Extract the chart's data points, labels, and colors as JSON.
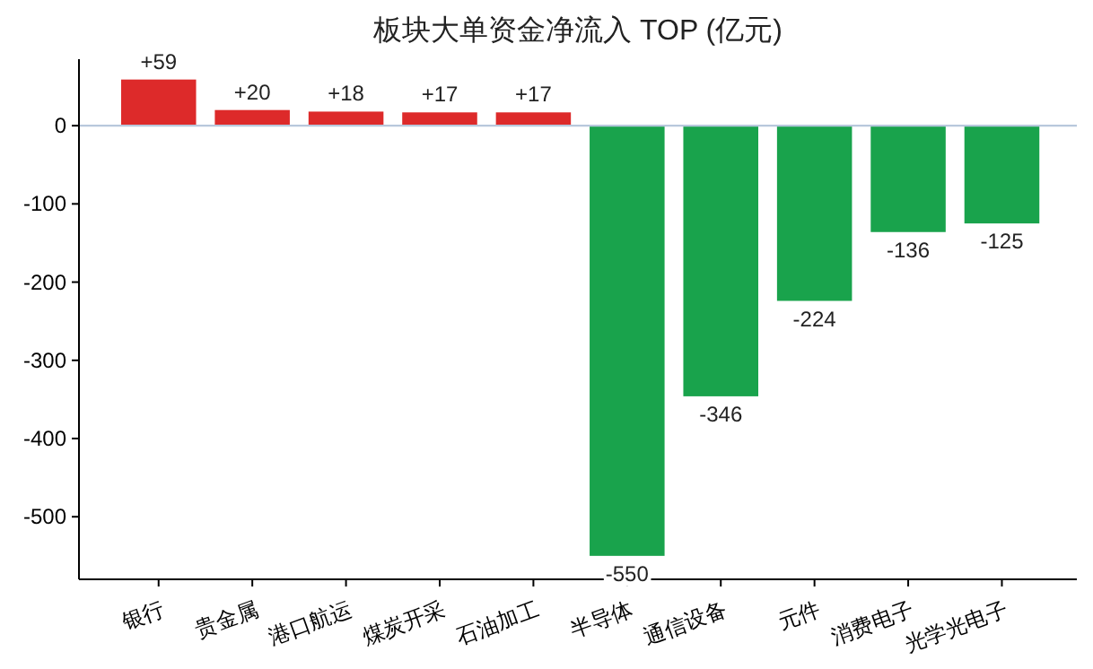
{
  "chart_data": {
    "type": "bar",
    "title": "板块大单资金净流入 TOP (亿元)",
    "categories": [
      "银行",
      "贵金属",
      "港口航运",
      "煤炭开采",
      "石油加工",
      "半导体",
      "通信设备",
      "元件",
      "消费电子",
      "光学光电子"
    ],
    "values": [
      59,
      20,
      18,
      17,
      17,
      -550,
      -346,
      -224,
      -136,
      -125
    ],
    "colors": [
      "#dd2a2a",
      "#dd2a2a",
      "#dd2a2a",
      "#dd2a2a",
      "#dd2a2a",
      "#19a34c",
      "#19a34c",
      "#19a34c",
      "#19a34c",
      "#19a34c"
    ],
    "value_labels": [
      "+59",
      "+20",
      "+18",
      "+17",
      "+17",
      "-550",
      "-346",
      "-224",
      "-136",
      "-125"
    ],
    "ylim": [
      -580,
      85
    ],
    "yticks": [
      0,
      -100,
      -200,
      -300,
      -400,
      -500
    ],
    "ref_lines": [
      {
        "axis": "y",
        "value": 0,
        "label": null,
        "color": "#b8c8dc"
      }
    ],
    "grid": false
  }
}
